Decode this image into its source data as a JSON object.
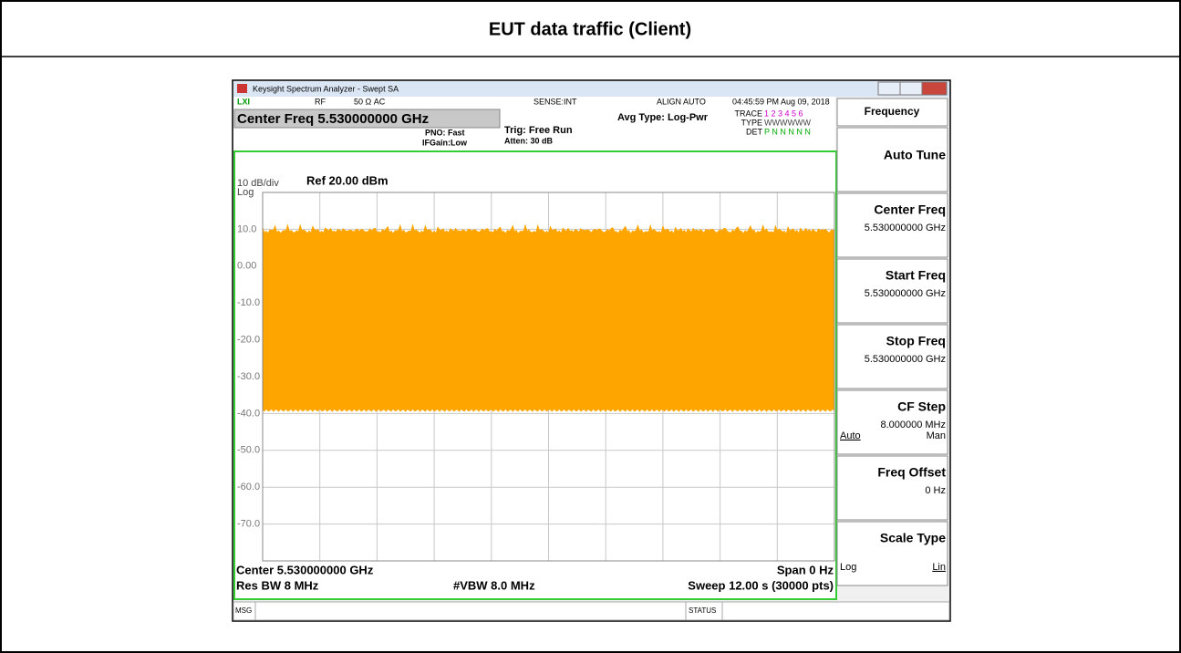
{
  "document": {
    "title": "EUT data traffic (Client)"
  },
  "window": {
    "title": "Keysight Spectrum Analyzer - Swept SA"
  },
  "status_row": {
    "rf": "RF",
    "impedance": "50 Ω  AC",
    "sense": "SENSE:INT",
    "align": "ALIGN AUTO",
    "timestamp": "04:45:59 PM Aug 09, 2018"
  },
  "header": {
    "center_freq": "Center Freq 5.530000000 GHz",
    "pno": "PNO: Fast",
    "ifgain": "IFGain:Low",
    "trig": "Trig: Free Run",
    "atten": "Atten: 30 dB",
    "avg_type": "Avg Type: Log-Pwr",
    "trace_label": "TRACE",
    "trace_nums": "1 2 3 4 5 6",
    "type_label": "TYPE",
    "type_value": "WWWWWW",
    "det_label": "DET",
    "det_value": "P N N N N N"
  },
  "screen": {
    "scale": "10 dB/div",
    "ref": "Ref 20.00 dBm",
    "log": "Log",
    "ytick_labels": [
      "10.0",
      "0.00",
      "-10.0",
      "-20.0",
      "-30.0",
      "-40.0",
      "-50.0",
      "-60.0",
      "-70.0"
    ],
    "center": "Center 5.530000000 GHz",
    "span": "Span 0 Hz",
    "rbw": "Res BW 8 MHz",
    "vbw": "#VBW 8.0 MHz",
    "sweep": "Sweep  12.00 s (30000 pts)"
  },
  "softkeys": {
    "menu": "Frequency",
    "keys": [
      {
        "label": "Auto Tune"
      },
      {
        "label": "Center Freq",
        "value": "5.530000000 GHz"
      },
      {
        "label": "Start Freq",
        "value": "5.530000000 GHz"
      },
      {
        "label": "Stop Freq",
        "value": "5.530000000 GHz"
      },
      {
        "label": "CF Step",
        "value": "8.000000 MHz",
        "left": "Auto",
        "right": "Man"
      },
      {
        "label": "Freq Offset",
        "value": "0 Hz"
      },
      {
        "label": "Scale Type",
        "left": "Log",
        "right": "Lin"
      }
    ]
  },
  "status_bar": {
    "msg": "MSG",
    "status": "STATUS"
  }
}
